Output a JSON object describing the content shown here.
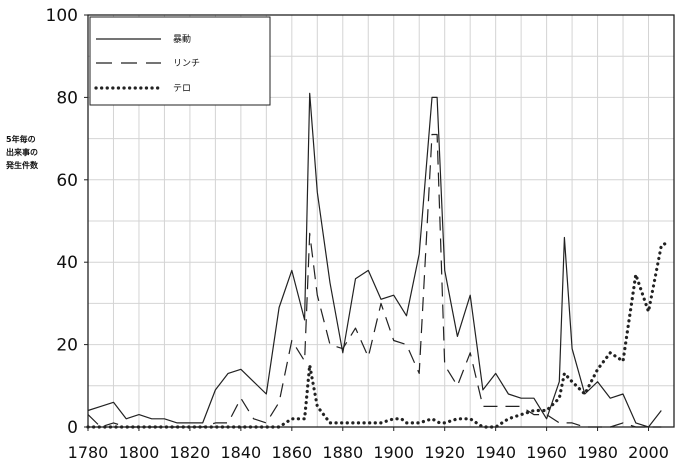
{
  "chart_data": {
    "type": "line",
    "title": "",
    "xlabel": "",
    "ylabel_lines": [
      "5年毎の",
      "出来事の",
      "発生件数"
    ],
    "xlim": [
      1780,
      2010
    ],
    "ylim": [
      0,
      100
    ],
    "x_ticks": [
      1780,
      1800,
      1820,
      1840,
      1860,
      1880,
      1900,
      1920,
      1940,
      1960,
      1980,
      2000
    ],
    "y_ticks": [
      0,
      20,
      40,
      60,
      80,
      100
    ],
    "grid": true,
    "legend_position": "top-left",
    "series": [
      {
        "name": "暴動",
        "style": "solid",
        "x": [
          1780,
          1785,
          1790,
          1795,
          1800,
          1805,
          1810,
          1815,
          1820,
          1825,
          1830,
          1835,
          1840,
          1845,
          1850,
          1855,
          1860,
          1865,
          1867,
          1870,
          1875,
          1880,
          1885,
          1890,
          1895,
          1900,
          1905,
          1910,
          1915,
          1917,
          1920,
          1925,
          1930,
          1935,
          1940,
          1945,
          1950,
          1955,
          1960,
          1965,
          1967,
          1970,
          1975,
          1980,
          1985,
          1990,
          1995,
          2000,
          2005
        ],
        "y": [
          4,
          5,
          6,
          2,
          3,
          2,
          2,
          1,
          1,
          1,
          9,
          13,
          14,
          11,
          8,
          29,
          38,
          26,
          81,
          57,
          35,
          18,
          36,
          38,
          31,
          32,
          27,
          42,
          80,
          80,
          38,
          22,
          32,
          9,
          13,
          8,
          7,
          7,
          2,
          11,
          46,
          19,
          8,
          11,
          7,
          8,
          1,
          0,
          4
        ]
      },
      {
        "name": "リンチ",
        "style": "dashed",
        "x": [
          1780,
          1785,
          1790,
          1795,
          1800,
          1805,
          1810,
          1815,
          1820,
          1825,
          1830,
          1835,
          1840,
          1845,
          1850,
          1855,
          1860,
          1865,
          1867,
          1870,
          1875,
          1880,
          1885,
          1890,
          1895,
          1900,
          1905,
          1910,
          1915,
          1917,
          1920,
          1925,
          1930,
          1935,
          1940,
          1945,
          1950,
          1955,
          1960,
          1965,
          1970,
          1975,
          1980,
          1985,
          1990,
          1995,
          2000,
          2005
        ],
        "y": [
          3,
          0,
          1,
          0,
          0,
          0,
          0,
          0,
          0,
          0,
          1,
          1,
          7,
          2,
          1,
          6,
          21,
          16,
          47,
          32,
          20,
          19,
          24,
          17,
          30,
          21,
          20,
          13,
          71,
          71,
          15,
          10,
          18,
          5,
          5,
          5,
          5,
          3,
          3,
          1,
          1,
          0,
          0,
          0,
          1,
          0,
          0,
          0
        ]
      },
      {
        "name": "テロ",
        "style": "dotted",
        "x": [
          1780,
          1790,
          1800,
          1810,
          1820,
          1830,
          1840,
          1850,
          1855,
          1860,
          1865,
          1867,
          1870,
          1875,
          1880,
          1885,
          1890,
          1895,
          1900,
          1903,
          1905,
          1910,
          1915,
          1918,
          1920,
          1925,
          1930,
          1935,
          1940,
          1945,
          1950,
          1955,
          1960,
          1965,
          1967,
          1970,
          1975,
          1980,
          1985,
          1990,
          1995,
          2000,
          2005,
          2008
        ],
        "y": [
          0,
          0,
          0,
          0,
          0,
          0,
          0,
          0,
          0,
          2,
          2,
          15,
          5,
          1,
          1,
          1,
          1,
          1,
          2,
          2,
          1,
          1,
          2,
          1,
          1,
          2,
          2,
          0,
          0,
          2,
          3,
          4,
          4,
          7,
          13,
          11,
          8,
          14,
          18,
          16,
          37,
          28,
          44,
          45
        ]
      }
    ]
  }
}
